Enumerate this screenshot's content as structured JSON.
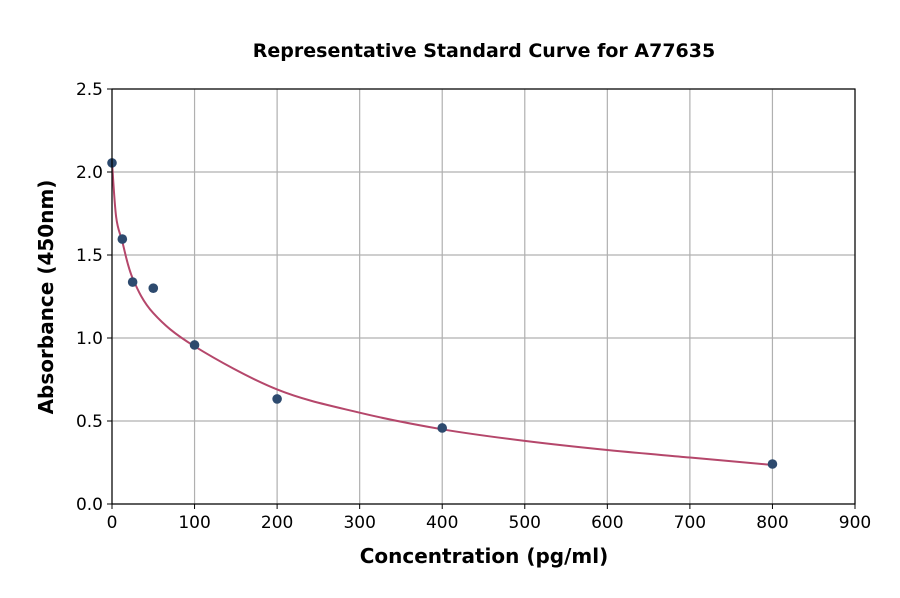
{
  "chart_data": {
    "type": "scatter",
    "title": "Representative Standard Curve for A77635",
    "xlabel": "Concentration (pg/ml)",
    "ylabel": "Absorbance (450nm)",
    "xlim": [
      0,
      900
    ],
    "ylim": [
      0,
      2.5
    ],
    "xticks": [
      0,
      100,
      200,
      300,
      400,
      500,
      600,
      700,
      800,
      900
    ],
    "yticks": [
      0.0,
      0.5,
      1.0,
      1.5,
      2.0,
      2.5
    ],
    "ytick_labels": [
      "0.0",
      "0.5",
      "1.0",
      "1.5",
      "2.0",
      "2.5"
    ],
    "grid": true,
    "points": {
      "x": [
        0,
        12.5,
        25,
        50,
        100,
        200,
        400,
        800
      ],
      "y": [
        2.055,
        1.596,
        1.337,
        1.3,
        0.958,
        0.633,
        0.458,
        0.241
      ],
      "color": "#2d4a6e"
    },
    "fit_curve": {
      "x": [
        0,
        5,
        12.5,
        25,
        50,
        100,
        200,
        300,
        400,
        500,
        600,
        700,
        800
      ],
      "y": [
        2.06,
        1.73,
        1.58,
        1.36,
        1.15,
        0.95,
        0.69,
        0.55,
        0.45,
        0.38,
        0.325,
        0.28,
        0.235
      ],
      "color": "#b5476b"
    }
  }
}
